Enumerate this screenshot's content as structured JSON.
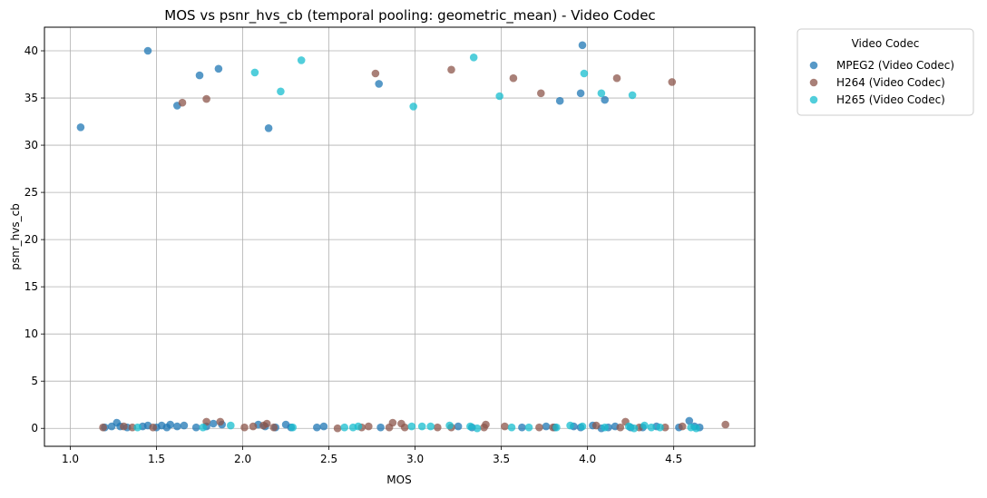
{
  "chart_data": {
    "type": "scatter",
    "title": "MOS vs psnr_hvs_cb (temporal pooling: geometric_mean) - Video Codec",
    "xlabel": "MOS",
    "ylabel": "psnr_hvs_cb",
    "xlim": [
      0.85,
      4.97
    ],
    "ylim": [
      -1.9,
      42.5
    ],
    "xticks": [
      1.0,
      1.5,
      2.0,
      2.5,
      3.0,
      3.5,
      4.0,
      4.5
    ],
    "xtick_labels": [
      "1.0",
      "1.5",
      "2.0",
      "2.5",
      "3.0",
      "3.5",
      "4.0",
      "4.5"
    ],
    "yticks": [
      0,
      5,
      10,
      15,
      20,
      25,
      30,
      35,
      40
    ],
    "ytick_labels": [
      "0",
      "5",
      "10",
      "15",
      "20",
      "25",
      "30",
      "35",
      "40"
    ],
    "grid": true,
    "legend": {
      "title": "Video Codec",
      "placement": "outside-top-right"
    },
    "series": [
      {
        "name": "MPEG2 (Video Codec)",
        "color": "#1f77b4",
        "points": [
          [
            1.06,
            31.9
          ],
          [
            1.45,
            40.0
          ],
          [
            1.62,
            34.2
          ],
          [
            1.75,
            37.4
          ],
          [
            1.86,
            38.1
          ],
          [
            2.15,
            31.8
          ],
          [
            2.79,
            36.5
          ],
          [
            3.84,
            34.7
          ],
          [
            3.96,
            35.5
          ],
          [
            3.97,
            40.6
          ],
          [
            4.1,
            34.8
          ],
          [
            1.2,
            0.1
          ],
          [
            1.24,
            0.2
          ],
          [
            1.27,
            0.6
          ],
          [
            1.29,
            0.2
          ],
          [
            1.33,
            0.1
          ],
          [
            1.42,
            0.2
          ],
          [
            1.45,
            0.3
          ],
          [
            1.5,
            0.1
          ],
          [
            1.53,
            0.3
          ],
          [
            1.56,
            0.1
          ],
          [
            1.58,
            0.4
          ],
          [
            1.62,
            0.2
          ],
          [
            1.66,
            0.3
          ],
          [
            1.73,
            0.1
          ],
          [
            1.79,
            0.2
          ],
          [
            1.83,
            0.5
          ],
          [
            1.88,
            0.4
          ],
          [
            2.09,
            0.4
          ],
          [
            2.13,
            0.2
          ],
          [
            2.19,
            0.1
          ],
          [
            2.25,
            0.4
          ],
          [
            2.28,
            0.1
          ],
          [
            2.43,
            0.1
          ],
          [
            2.47,
            0.2
          ],
          [
            2.8,
            0.1
          ],
          [
            3.25,
            0.2
          ],
          [
            3.33,
            0.1
          ],
          [
            3.62,
            0.1
          ],
          [
            3.76,
            0.2
          ],
          [
            3.81,
            0.1
          ],
          [
            3.92,
            0.2
          ],
          [
            3.96,
            0.1
          ],
          [
            4.03,
            0.3
          ],
          [
            4.08,
            0.0
          ],
          [
            4.12,
            0.1
          ],
          [
            4.16,
            0.2
          ],
          [
            4.25,
            0.1
          ],
          [
            4.32,
            0.1
          ],
          [
            4.4,
            0.2
          ],
          [
            4.53,
            0.1
          ],
          [
            4.59,
            0.8
          ],
          [
            4.62,
            0.2
          ],
          [
            4.65,
            0.1
          ]
        ]
      },
      {
        "name": "H264 (Video Codec)",
        "color": "#8c564b",
        "points": [
          [
            1.65,
            34.5
          ],
          [
            1.79,
            34.9
          ],
          [
            2.77,
            37.6
          ],
          [
            3.21,
            38.0
          ],
          [
            3.57,
            37.1
          ],
          [
            3.73,
            35.5
          ],
          [
            4.17,
            37.1
          ],
          [
            4.49,
            36.7
          ],
          [
            1.19,
            0.1
          ],
          [
            1.31,
            0.2
          ],
          [
            1.36,
            0.1
          ],
          [
            1.48,
            0.1
          ],
          [
            1.79,
            0.7
          ],
          [
            1.87,
            0.7
          ],
          [
            2.01,
            0.1
          ],
          [
            2.06,
            0.2
          ],
          [
            2.12,
            0.3
          ],
          [
            2.14,
            0.5
          ],
          [
            2.18,
            0.1
          ],
          [
            2.55,
            0.0
          ],
          [
            2.69,
            0.1
          ],
          [
            2.73,
            0.2
          ],
          [
            2.85,
            0.1
          ],
          [
            2.87,
            0.6
          ],
          [
            2.92,
            0.5
          ],
          [
            2.94,
            0.1
          ],
          [
            3.13,
            0.1
          ],
          [
            3.21,
            0.1
          ],
          [
            3.4,
            0.1
          ],
          [
            3.41,
            0.4
          ],
          [
            3.52,
            0.2
          ],
          [
            3.72,
            0.1
          ],
          [
            3.8,
            0.1
          ],
          [
            4.05,
            0.3
          ],
          [
            4.19,
            0.1
          ],
          [
            4.22,
            0.7
          ],
          [
            4.3,
            0.1
          ],
          [
            4.45,
            0.1
          ],
          [
            4.55,
            0.2
          ],
          [
            4.8,
            0.4
          ]
        ]
      },
      {
        "name": "H265 (Video Codec)",
        "color": "#17becf",
        "points": [
          [
            2.07,
            37.7
          ],
          [
            2.22,
            35.7
          ],
          [
            2.34,
            39.0
          ],
          [
            2.99,
            34.1
          ],
          [
            3.34,
            39.3
          ],
          [
            3.49,
            35.2
          ],
          [
            3.98,
            37.6
          ],
          [
            4.08,
            35.5
          ],
          [
            4.26,
            35.3
          ],
          [
            1.39,
            0.1
          ],
          [
            1.77,
            0.1
          ],
          [
            1.93,
            0.3
          ],
          [
            2.29,
            0.1
          ],
          [
            2.59,
            0.1
          ],
          [
            2.64,
            0.1
          ],
          [
            2.67,
            0.2
          ],
          [
            2.98,
            0.2
          ],
          [
            3.04,
            0.2
          ],
          [
            3.09,
            0.2
          ],
          [
            3.2,
            0.3
          ],
          [
            3.32,
            0.2
          ],
          [
            3.36,
            0.0
          ],
          [
            3.56,
            0.1
          ],
          [
            3.66,
            0.1
          ],
          [
            3.82,
            0.1
          ],
          [
            3.9,
            0.3
          ],
          [
            3.97,
            0.2
          ],
          [
            4.1,
            0.1
          ],
          [
            4.24,
            0.2
          ],
          [
            4.27,
            0.0
          ],
          [
            4.33,
            0.3
          ],
          [
            4.37,
            0.1
          ],
          [
            4.42,
            0.1
          ],
          [
            4.6,
            0.1
          ],
          [
            4.63,
            0.0
          ]
        ]
      }
    ]
  }
}
